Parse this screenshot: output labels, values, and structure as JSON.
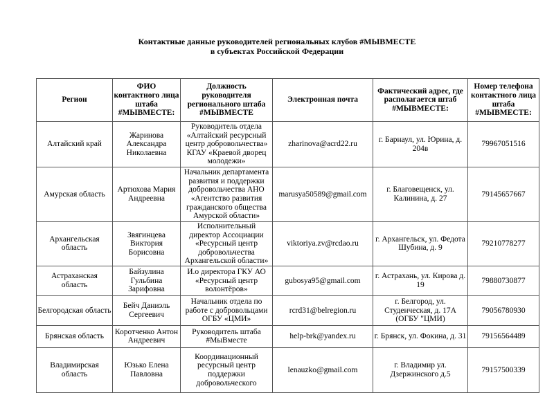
{
  "title": {
    "line1": "Контактные данные руководителей региональных клубов #МЫВМЕСТЕ",
    "line2": "в субъектах Российской Федерации"
  },
  "table": {
    "headers": [
      "Регион",
      "ФИО контактного лица штаба #МЫВМЕСТЕ:",
      "Должность руководителя регионального штаба #МЫВМЕСТЕ",
      "Электронная почта",
      "Фактический адрес, где располагается штаб #МЫВМЕСТЕ:",
      "Номер телефона контактного лица штаба #МЫВМЕСТЕ:"
    ],
    "rows": [
      [
        "Алтайский край",
        "Жаринова Александра Николаевна",
        "Руководитель отдела «Алтайский ресурсный центр добровольчества» КГАУ «Краевой дворец молодежи»",
        "zharinova@acrd22.ru",
        "г. Барнаул, ул. Юрина, д. 204в",
        "79967051516"
      ],
      [
        "Амурская область",
        "Артюхова Мария Андреевна",
        "Начальник департамента развития и поддержки добровольчества АНО «Агентство развития гражданского общества Амурской области»",
        "marusya50589@gmail.com",
        "г. Благовещенск, ул. Калинина, д. 27",
        "79145657667"
      ],
      [
        "Архангельская область",
        "Звягинцева Виктория Борисовна",
        "Исполнительный директор Ассоциации «Ресурсный центр добровольчества Архангельской области»",
        "viktoriya.zv@rcdao.ru",
        "г. Архангельск, ул. Федота Шубина, д. 9",
        "79210778277"
      ],
      [
        "Астраханская область",
        "Байзулина Гульбина Зарифовна",
        "И.о директора ГКУ АО «Ресурсный центр волонтёров»",
        "gubosya95@gmail.com",
        "г. Астрахань, ул. Кирова д. 19",
        "79880730877"
      ],
      [
        "Белгородская область",
        "Бейч Даниэль Сергеевич",
        "Начальник отдела по работе с добровольцами ОГБУ «ЦМИ»",
        "rcrd31@belregion.ru",
        "г. Белгород, ул. Студенческая, д. 17А (ОГБУ \"ЦМИ)",
        "79056780930"
      ],
      [
        "Брянская область",
        "Коротченко Антон Андреевич",
        "Руководитель штаба #МыВместе",
        "help-brk@yandex.ru",
        "г. Брянск, ул. Фокина, д. 31",
        "79156564489"
      ],
      [
        "Владимирская область",
        "Юзько Елена Павловна",
        "Координационный ресурсный центр поддержки добровольческого",
        "lenauzko@gmail.com",
        "г. Владимир ул. Дзержинского д.5",
        "79157500339"
      ]
    ]
  }
}
